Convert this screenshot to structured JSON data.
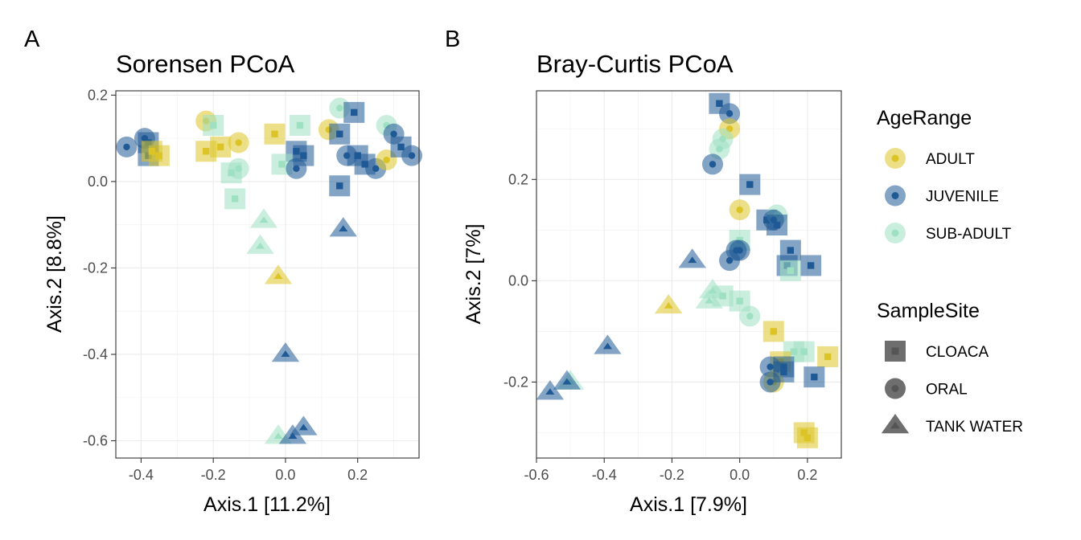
{
  "colors": {
    "ADULT": "#dcc426",
    "JUVENILE": "#1f5a96",
    "SUB-ADULT": "#9ee0c2",
    "legend_shape": "#555555"
  },
  "legend": {
    "age_title": "AgeRange",
    "age_items": [
      {
        "label": "ADULT",
        "color": "#dcc426"
      },
      {
        "label": "JUVENILE",
        "color": "#1f5a96"
      },
      {
        "label": "SUB-ADULT",
        "color": "#9ee0c2"
      }
    ],
    "site_title": "SampleSite",
    "site_items": [
      {
        "label": "CLOACA",
        "shape": "square"
      },
      {
        "label": "ORAL",
        "shape": "circle"
      },
      {
        "label": "TANK WATER",
        "shape": "triangle"
      }
    ]
  },
  "chart_data": [
    {
      "panel_tag": "A",
      "type": "scatter",
      "title": "Sorensen PCoA",
      "xlabel": "Axis.1   [11.2%]",
      "ylabel": "Axis.2   [8.8%]",
      "xlim": [
        -0.47,
        0.37
      ],
      "ylim": [
        -0.64,
        0.21
      ],
      "xticks": [
        -0.4,
        -0.2,
        0.0,
        0.2
      ],
      "xtick_labels": [
        "-0.4",
        "-0.2",
        "0.0",
        "0.2"
      ],
      "yticks": [
        -0.6,
        -0.4,
        -0.2,
        0.0,
        0.2
      ],
      "ytick_labels": [
        "-0.6",
        "-0.4",
        "-0.2",
        "0.0",
        "0.2"
      ],
      "grid": true,
      "points": [
        {
          "x": -0.44,
          "y": 0.08,
          "age": "JUVENILE",
          "site": "ORAL"
        },
        {
          "x": -0.39,
          "y": 0.1,
          "age": "JUVENILE",
          "site": "ORAL"
        },
        {
          "x": -0.38,
          "y": 0.09,
          "age": "JUVENILE",
          "site": "CLOACA"
        },
        {
          "x": -0.38,
          "y": 0.06,
          "age": "JUVENILE",
          "site": "CLOACA"
        },
        {
          "x": -0.37,
          "y": 0.07,
          "age": "ADULT",
          "site": "CLOACA"
        },
        {
          "x": -0.35,
          "y": 0.06,
          "age": "ADULT",
          "site": "CLOACA"
        },
        {
          "x": -0.22,
          "y": 0.14,
          "age": "ADULT",
          "site": "ORAL"
        },
        {
          "x": -0.2,
          "y": 0.13,
          "age": "SUB-ADULT",
          "site": "CLOACA"
        },
        {
          "x": -0.22,
          "y": 0.07,
          "age": "ADULT",
          "site": "CLOACA"
        },
        {
          "x": -0.18,
          "y": 0.08,
          "age": "ADULT",
          "site": "CLOACA"
        },
        {
          "x": -0.13,
          "y": 0.09,
          "age": "ADULT",
          "site": "ORAL"
        },
        {
          "x": -0.15,
          "y": 0.02,
          "age": "SUB-ADULT",
          "site": "CLOACA"
        },
        {
          "x": -0.13,
          "y": 0.03,
          "age": "SUB-ADULT",
          "site": "ORAL"
        },
        {
          "x": -0.14,
          "y": -0.04,
          "age": "SUB-ADULT",
          "site": "CLOACA"
        },
        {
          "x": -0.03,
          "y": 0.11,
          "age": "ADULT",
          "site": "CLOACA"
        },
        {
          "x": 0.03,
          "y": 0.07,
          "age": "JUVENILE",
          "site": "CLOACA"
        },
        {
          "x": 0.04,
          "y": 0.13,
          "age": "SUB-ADULT",
          "site": "CLOACA"
        },
        {
          "x": -0.01,
          "y": 0.04,
          "age": "SUB-ADULT",
          "site": "CLOACA"
        },
        {
          "x": 0.03,
          "y": 0.03,
          "age": "JUVENILE",
          "site": "ORAL"
        },
        {
          "x": 0.05,
          "y": 0.06,
          "age": "JUVENILE",
          "site": "CLOACA"
        },
        {
          "x": 0.12,
          "y": 0.12,
          "age": "ADULT",
          "site": "ORAL"
        },
        {
          "x": 0.15,
          "y": 0.11,
          "age": "JUVENILE",
          "site": "CLOACA"
        },
        {
          "x": 0.15,
          "y": 0.17,
          "age": "SUB-ADULT",
          "site": "ORAL"
        },
        {
          "x": 0.19,
          "y": 0.16,
          "age": "JUVENILE",
          "site": "CLOACA"
        },
        {
          "x": 0.17,
          "y": 0.06,
          "age": "JUVENILE",
          "site": "ORAL"
        },
        {
          "x": 0.2,
          "y": 0.06,
          "age": "JUVENILE",
          "site": "CLOACA"
        },
        {
          "x": 0.15,
          "y": -0.01,
          "age": "JUVENILE",
          "site": "CLOACA"
        },
        {
          "x": 0.22,
          "y": 0.04,
          "age": "JUVENILE",
          "site": "CLOACA"
        },
        {
          "x": 0.25,
          "y": 0.03,
          "age": "JUVENILE",
          "site": "ORAL"
        },
        {
          "x": 0.28,
          "y": 0.05,
          "age": "ADULT",
          "site": "ORAL"
        },
        {
          "x": 0.28,
          "y": 0.13,
          "age": "SUB-ADULT",
          "site": "ORAL"
        },
        {
          "x": 0.3,
          "y": 0.11,
          "age": "JUVENILE",
          "site": "ORAL"
        },
        {
          "x": 0.32,
          "y": 0.08,
          "age": "JUVENILE",
          "site": "CLOACA"
        },
        {
          "x": 0.35,
          "y": 0.06,
          "age": "JUVENILE",
          "site": "ORAL"
        },
        {
          "x": -0.06,
          "y": -0.09,
          "age": "SUB-ADULT",
          "site": "TANK WATER"
        },
        {
          "x": -0.07,
          "y": -0.15,
          "age": "SUB-ADULT",
          "site": "TANK WATER"
        },
        {
          "x": -0.02,
          "y": -0.22,
          "age": "ADULT",
          "site": "TANK WATER"
        },
        {
          "x": 0.16,
          "y": -0.11,
          "age": "JUVENILE",
          "site": "TANK WATER"
        },
        {
          "x": 0.0,
          "y": -0.4,
          "age": "JUVENILE",
          "site": "TANK WATER"
        },
        {
          "x": -0.02,
          "y": -0.59,
          "age": "SUB-ADULT",
          "site": "TANK WATER"
        },
        {
          "x": 0.02,
          "y": -0.59,
          "age": "JUVENILE",
          "site": "TANK WATER"
        },
        {
          "x": 0.05,
          "y": -0.57,
          "age": "JUVENILE",
          "site": "TANK WATER"
        }
      ]
    },
    {
      "panel_tag": "B",
      "type": "scatter",
      "title": "Bray-Curtis PCoA",
      "xlabel": "Axis.1   [7.9%]",
      "ylabel": "Axis.2   [7%]",
      "xlim": [
        -0.6,
        0.3
      ],
      "ylim": [
        -0.35,
        0.375
      ],
      "xticks": [
        -0.6,
        -0.4,
        -0.2,
        0.0,
        0.2
      ],
      "xtick_labels": [
        "-0.6",
        "-0.4",
        "-0.2",
        "0.0",
        "0.2"
      ],
      "yticks": [
        -0.2,
        0.0,
        0.2
      ],
      "ytick_labels": [
        "-0.2",
        "0.0",
        "0.2"
      ],
      "grid": true,
      "points": [
        {
          "x": -0.06,
          "y": 0.35,
          "age": "JUVENILE",
          "site": "CLOACA"
        },
        {
          "x": -0.03,
          "y": 0.33,
          "age": "JUVENILE",
          "site": "ORAL"
        },
        {
          "x": -0.03,
          "y": 0.3,
          "age": "ADULT",
          "site": "ORAL"
        },
        {
          "x": -0.05,
          "y": 0.28,
          "age": "SUB-ADULT",
          "site": "ORAL"
        },
        {
          "x": -0.06,
          "y": 0.26,
          "age": "SUB-ADULT",
          "site": "ORAL"
        },
        {
          "x": -0.08,
          "y": 0.23,
          "age": "JUVENILE",
          "site": "ORAL"
        },
        {
          "x": 0.03,
          "y": 0.19,
          "age": "JUVENILE",
          "site": "CLOACA"
        },
        {
          "x": 0.0,
          "y": 0.14,
          "age": "ADULT",
          "site": "ORAL"
        },
        {
          "x": 0.08,
          "y": 0.12,
          "age": "JUVENILE",
          "site": "CLOACA"
        },
        {
          "x": 0.11,
          "y": 0.13,
          "age": "SUB-ADULT",
          "site": "ORAL"
        },
        {
          "x": 0.1,
          "y": 0.12,
          "age": "JUVENILE",
          "site": "ORAL"
        },
        {
          "x": 0.11,
          "y": 0.11,
          "age": "JUVENILE",
          "site": "CLOACA"
        },
        {
          "x": 0.0,
          "y": 0.08,
          "age": "SUB-ADULT",
          "site": "CLOACA"
        },
        {
          "x": 0.0,
          "y": 0.06,
          "age": "JUVENILE",
          "site": "ORAL"
        },
        {
          "x": -0.01,
          "y": 0.06,
          "age": "JUVENILE",
          "site": "ORAL"
        },
        {
          "x": -0.03,
          "y": 0.04,
          "age": "JUVENILE",
          "site": "ORAL"
        },
        {
          "x": 0.15,
          "y": 0.06,
          "age": "JUVENILE",
          "site": "CLOACA"
        },
        {
          "x": 0.14,
          "y": 0.03,
          "age": "JUVENILE",
          "site": "CLOACA"
        },
        {
          "x": 0.21,
          "y": 0.03,
          "age": "JUVENILE",
          "site": "CLOACA"
        },
        {
          "x": 0.15,
          "y": 0.02,
          "age": "SUB-ADULT",
          "site": "CLOACA"
        },
        {
          "x": -0.08,
          "y": -0.02,
          "age": "SUB-ADULT",
          "site": "TANK WATER"
        },
        {
          "x": -0.05,
          "y": -0.03,
          "age": "SUB-ADULT",
          "site": "CLOACA"
        },
        {
          "x": 0.0,
          "y": -0.04,
          "age": "SUB-ADULT",
          "site": "CLOACA"
        },
        {
          "x": -0.09,
          "y": -0.04,
          "age": "SUB-ADULT",
          "site": "TANK WATER"
        },
        {
          "x": 0.03,
          "y": -0.07,
          "age": "SUB-ADULT",
          "site": "ORAL"
        },
        {
          "x": 0.1,
          "y": -0.1,
          "age": "ADULT",
          "site": "CLOACA"
        },
        {
          "x": -0.14,
          "y": 0.04,
          "age": "JUVENILE",
          "site": "TANK WATER"
        },
        {
          "x": -0.21,
          "y": -0.05,
          "age": "ADULT",
          "site": "TANK WATER"
        },
        {
          "x": 0.16,
          "y": -0.14,
          "age": "SUB-ADULT",
          "site": "CLOACA"
        },
        {
          "x": 0.19,
          "y": -0.14,
          "age": "SUB-ADULT",
          "site": "CLOACA"
        },
        {
          "x": 0.26,
          "y": -0.15,
          "age": "ADULT",
          "site": "CLOACA"
        },
        {
          "x": 0.12,
          "y": -0.16,
          "age": "ADULT",
          "site": "CLOACA"
        },
        {
          "x": 0.13,
          "y": -0.17,
          "age": "JUVENILE",
          "site": "CLOACA"
        },
        {
          "x": 0.09,
          "y": -0.17,
          "age": "JUVENILE",
          "site": "ORAL"
        },
        {
          "x": 0.22,
          "y": -0.19,
          "age": "JUVENILE",
          "site": "CLOACA"
        },
        {
          "x": 0.1,
          "y": -0.2,
          "age": "ADULT",
          "site": "ORAL"
        },
        {
          "x": 0.09,
          "y": -0.2,
          "age": "JUVENILE",
          "site": "ORAL"
        },
        {
          "x": 0.13,
          "y": -0.18,
          "age": "JUVENILE",
          "site": "CLOACA"
        },
        {
          "x": 0.19,
          "y": -0.3,
          "age": "ADULT",
          "site": "CLOACA"
        },
        {
          "x": 0.2,
          "y": -0.31,
          "age": "ADULT",
          "site": "CLOACA"
        },
        {
          "x": -0.39,
          "y": -0.13,
          "age": "JUVENILE",
          "site": "TANK WATER"
        },
        {
          "x": -0.56,
          "y": -0.22,
          "age": "JUVENILE",
          "site": "TANK WATER"
        },
        {
          "x": -0.5,
          "y": -0.2,
          "age": "SUB-ADULT",
          "site": "TANK WATER"
        },
        {
          "x": -0.51,
          "y": -0.2,
          "age": "JUVENILE",
          "site": "TANK WATER"
        }
      ]
    }
  ]
}
